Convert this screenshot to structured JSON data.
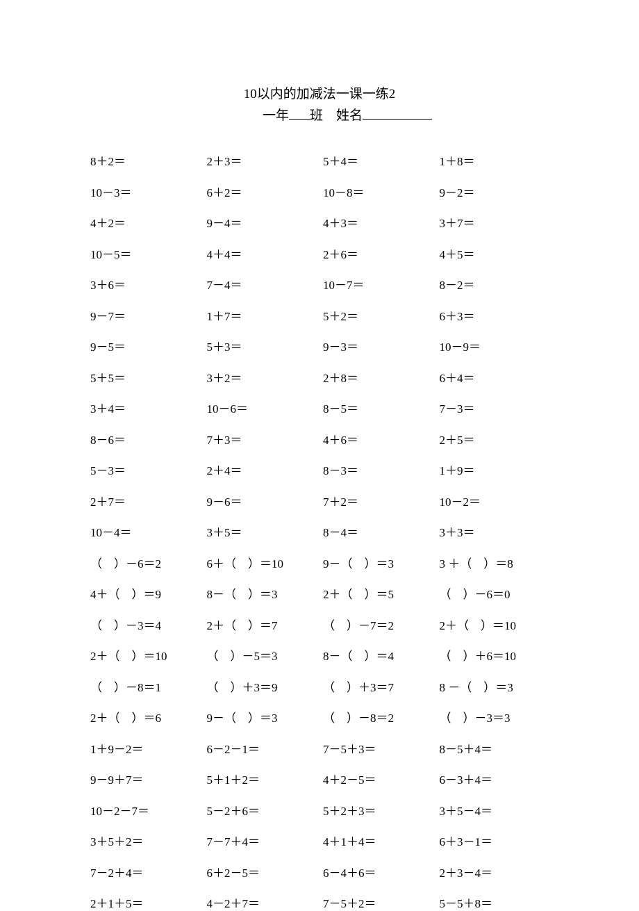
{
  "doc": {
    "title": "10以内的加减法一课一练2",
    "grade_prefix": "一年",
    "grade_suffix": "班",
    "name_label": "姓名",
    "title_fontsize": 19,
    "body_fontsize": 17,
    "text_color": "#000000",
    "background_color": "#ffffff",
    "columns": 4,
    "rows": 25,
    "problems": [
      "8＋2＝",
      "2＋3＝",
      "5＋4＝",
      "1＋8＝",
      "10－3＝",
      "6＋2＝",
      "10－8＝",
      "9－2＝",
      "4＋2＝",
      "9－4＝",
      "4＋3＝",
      "3＋7＝",
      "10－5＝",
      "4＋4＝",
      "2＋6＝",
      "4＋5＝",
      "3＋6＝",
      "7－4＝",
      "10－7＝",
      "8－2＝",
      "9－7＝",
      "1＋7＝",
      "5＋2＝",
      "6＋3＝",
      "9－5＝",
      "5＋3＝",
      "9－3＝",
      "10－9＝",
      "5＋5＝",
      "3＋2＝",
      "2＋8＝",
      "6＋4＝",
      "3＋4＝",
      "10－6＝",
      "8－5＝",
      "7－3＝",
      "8－6＝",
      "7＋3＝",
      "4＋6＝",
      "2＋5＝",
      "5－3＝",
      "2＋4＝",
      "8－3＝",
      "1＋9＝",
      "2＋7＝",
      "9－6＝",
      "7＋2＝",
      "10－2＝",
      "10－4＝",
      "3＋5＝",
      "8－4＝",
      "3＋3＝",
      "（　）－6＝2",
      "6＋（　）＝10",
      "9－（　）＝3",
      "3 ＋（　）＝8",
      "4＋（　）＝9",
      "8－（　）＝3",
      "2＋（　）＝5",
      "（　）－6＝0",
      "（　）－3＝4",
      "2＋（　）＝7",
      "（　）－7＝2",
      "2＋（　）＝10",
      "2＋（　）＝10",
      "（　）－5＝3",
      "8－（　）＝4",
      "（　）＋6＝10",
      "（　）－8＝1",
      "（　）＋3＝9",
      "（　）＋3＝7",
      "8 －（　）＝3",
      "2＋（　）＝6",
      "9－（　）＝3",
      "（　）－8＝2",
      "（　）－3＝3",
      "1＋9－2＝",
      "6－2－1＝",
      "7－5＋3＝",
      "8－5＋4＝",
      "9－9＋7＝",
      "5＋1＋2＝",
      "4＋2－5＝",
      "6－3＋4＝",
      "10－2－7＝",
      "5－2＋6＝",
      "5＋2＋3＝",
      "3＋5－4＝",
      "3＋5＋2＝",
      "7－7＋4＝",
      "4＋1＋4＝",
      "6＋3－1＝",
      "7－2＋4＝",
      "6＋2－5＝",
      "6－4＋6＝",
      "2＋3－4＝",
      "2＋1＋5＝",
      "4－2＋7＝",
      "7－5＋2＝",
      "5－5＋8＝"
    ]
  }
}
